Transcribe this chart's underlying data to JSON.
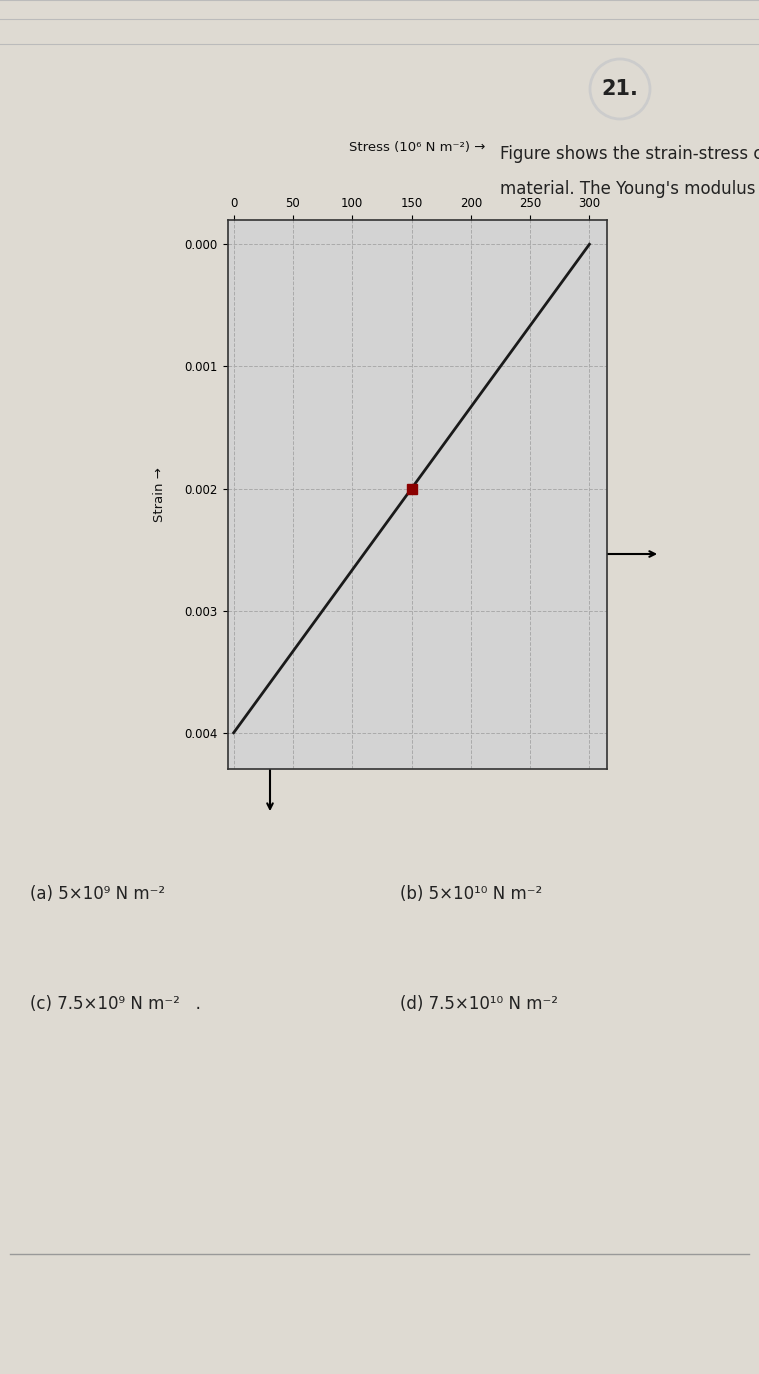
{
  "question_num": "21.",
  "question_text_line1": "Figure shows the strain-stress curve for a given",
  "question_text_line2": "material. The Young's modulus of the material is",
  "stress_label": "Stress (10⁶ N m⁻²) →",
  "strain_label": "Strain →",
  "stress_ticks": [
    0,
    50,
    100,
    150,
    200,
    250,
    300
  ],
  "strain_ticks": [
    0.0,
    0.001,
    0.002,
    0.003,
    0.004
  ],
  "line_stress": [
    300,
    0
  ],
  "line_strain": [
    0.0,
    0.004
  ],
  "marker_stress": [
    150
  ],
  "marker_strain": [
    0.002
  ],
  "marker_color": "#8B0000",
  "line_color": "#1a1a1a",
  "grid_color": "#aaaaaa",
  "chart_bg": "#d3d3d3",
  "options": [
    "(a) 5×10⁹ N m⁻²",
    "(b) 5×10¹⁰ N m⁻²",
    "(c) 7.5×10⁹ N m⁻²   .",
    "(d) 7.5×10¹⁰ N m⁻²"
  ],
  "paper_bg": "#dedad2"
}
